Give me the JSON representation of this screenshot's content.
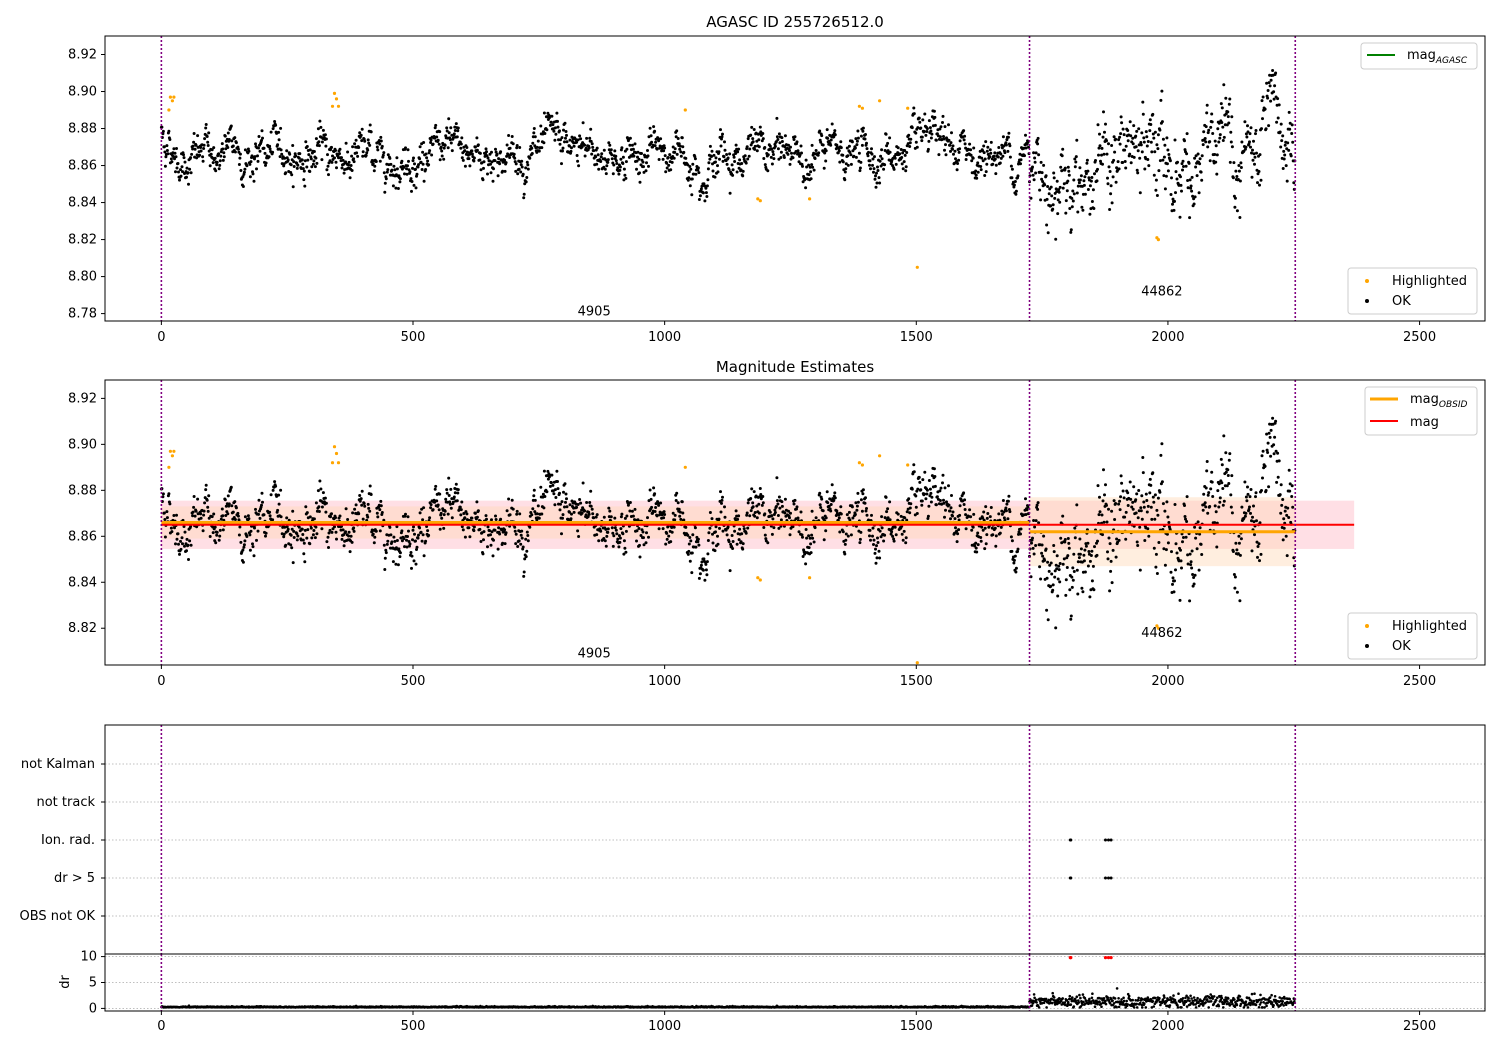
{
  "figure": {
    "title": "AGASC ID 255726512.0"
  },
  "colors": {
    "ok": "#000000",
    "highlighted": "#ffa500",
    "mag_agasc": "#008000",
    "mag_obsid": "#ffa500",
    "mag": "#ff0000",
    "band_mag": "#ffc0cb",
    "band_obsid": "#ffdab9",
    "obs_boundary": "#800080",
    "dr_flag": "#ff0000"
  },
  "chart_data": [
    {
      "type": "scatter",
      "title": "AGASC ID 255726512.0",
      "xlabel": "",
      "ylabel": "",
      "xlim": [
        -112,
        2630
      ],
      "ylim": [
        8.776,
        8.93
      ],
      "xticks": [
        0,
        500,
        1000,
        1500,
        2000,
        2500
      ],
      "yticks": [
        8.78,
        8.8,
        8.82,
        8.84,
        8.86,
        8.88,
        8.9,
        8.92
      ],
      "grid": false,
      "legend_top": {
        "position": "top-right",
        "entries": [
          {
            "label": "mag",
            "subscript": "AGASC"
          }
        ]
      },
      "legend_bottom": {
        "position": "bottom-right",
        "entries": [
          "Highlighted",
          "OK"
        ]
      },
      "obsids": [
        {
          "label": "4905",
          "x_start": 0,
          "x_end": 1725,
          "label_x": 860,
          "label_y": 8.781,
          "mean": 8.866,
          "sigma": 0.007
        },
        {
          "label": "44862",
          "x_start": 1725,
          "x_end": 2253,
          "label_x": 1988,
          "label_y": 8.792,
          "mean": 8.862,
          "sigma": 0.015
        }
      ],
      "obs_boundaries": [
        0,
        1725,
        2253
      ],
      "highlighted_points": [
        [
          18,
          8.897
        ],
        [
          22,
          8.895
        ],
        [
          25,
          8.897
        ],
        [
          15,
          8.89
        ],
        [
          340,
          8.892
        ],
        [
          344,
          8.899
        ],
        [
          348,
          8.896
        ],
        [
          352,
          8.892
        ],
        [
          1041,
          8.89
        ],
        [
          1185,
          8.842
        ],
        [
          1190,
          8.841
        ],
        [
          1288,
          8.842
        ],
        [
          1387,
          8.892
        ],
        [
          1393,
          8.891
        ],
        [
          1427,
          8.895
        ],
        [
          1483,
          8.891
        ],
        [
          1502,
          8.805
        ],
        [
          1978,
          8.821
        ],
        [
          1981,
          8.82
        ]
      ]
    },
    {
      "type": "scatter",
      "title": "Magnitude Estimates",
      "xlabel": "",
      "ylabel": "",
      "xlim": [
        -112,
        2630
      ],
      "ylim": [
        8.804,
        8.928
      ],
      "xticks": [
        0,
        500,
        1000,
        1500,
        2000,
        2500
      ],
      "yticks": [
        8.82,
        8.84,
        8.86,
        8.88,
        8.9,
        8.92
      ],
      "grid": false,
      "legend_top": {
        "position": "top-right",
        "entries": [
          {
            "label": "mag",
            "subscript": "OBSID"
          },
          {
            "label": "mag",
            "subscript": ""
          }
        ]
      },
      "legend_bottom": {
        "position": "bottom-right",
        "entries": [
          "Highlighted",
          "OK"
        ]
      },
      "mag": {
        "value": 8.865,
        "sigma": 0.0105,
        "x_start": 0,
        "x_end": 2370
      },
      "obsids": [
        {
          "label": "4905",
          "x_start": 0,
          "x_end": 1725,
          "label_x": 860,
          "label_y": 8.809,
          "mean": 8.866,
          "sigma": 0.007
        },
        {
          "label": "44862",
          "x_start": 1725,
          "x_end": 2253,
          "label_x": 1988,
          "label_y": 8.818,
          "mean": 8.862,
          "sigma": 0.015
        }
      ]
    },
    {
      "type": "scatter",
      "title": "",
      "xlabel": "",
      "ylabel": "",
      "xlim": [
        -112,
        2630
      ],
      "categories": [
        "not Kalman",
        "not track",
        "Ion. rad.",
        "dr > 5",
        "OBS not OK"
      ],
      "grid": true,
      "flags": {
        "Ion. rad.": [
          1806,
          1807,
          1876,
          1882,
          1887
        ],
        "dr > 5": [
          1806,
          1807,
          1876,
          1882,
          1887
        ],
        "not Kalman": [],
        "not track": [],
        "OBS not OK": []
      }
    },
    {
      "type": "scatter",
      "title": "",
      "xlabel": "",
      "ylabel": "dr",
      "xlim": [
        -112,
        2630
      ],
      "ylim": [
        -0.5,
        10.5
      ],
      "xticks": [
        0,
        500,
        1000,
        1500,
        2000,
        2500
      ],
      "yticks": [
        0,
        5,
        10
      ],
      "grid": true,
      "dr_flagged": [
        [
          1806,
          9.8
        ],
        [
          1807,
          9.8
        ],
        [
          1876,
          9.8
        ],
        [
          1882,
          9.8
        ],
        [
          1887,
          9.8
        ]
      ],
      "dr_levels": [
        {
          "x_start": 0,
          "x_end": 1725,
          "mean": 0.2,
          "spread": 0.15
        },
        {
          "x_start": 1725,
          "x_end": 2253,
          "mean": 1.3,
          "spread": 0.6
        }
      ]
    }
  ]
}
